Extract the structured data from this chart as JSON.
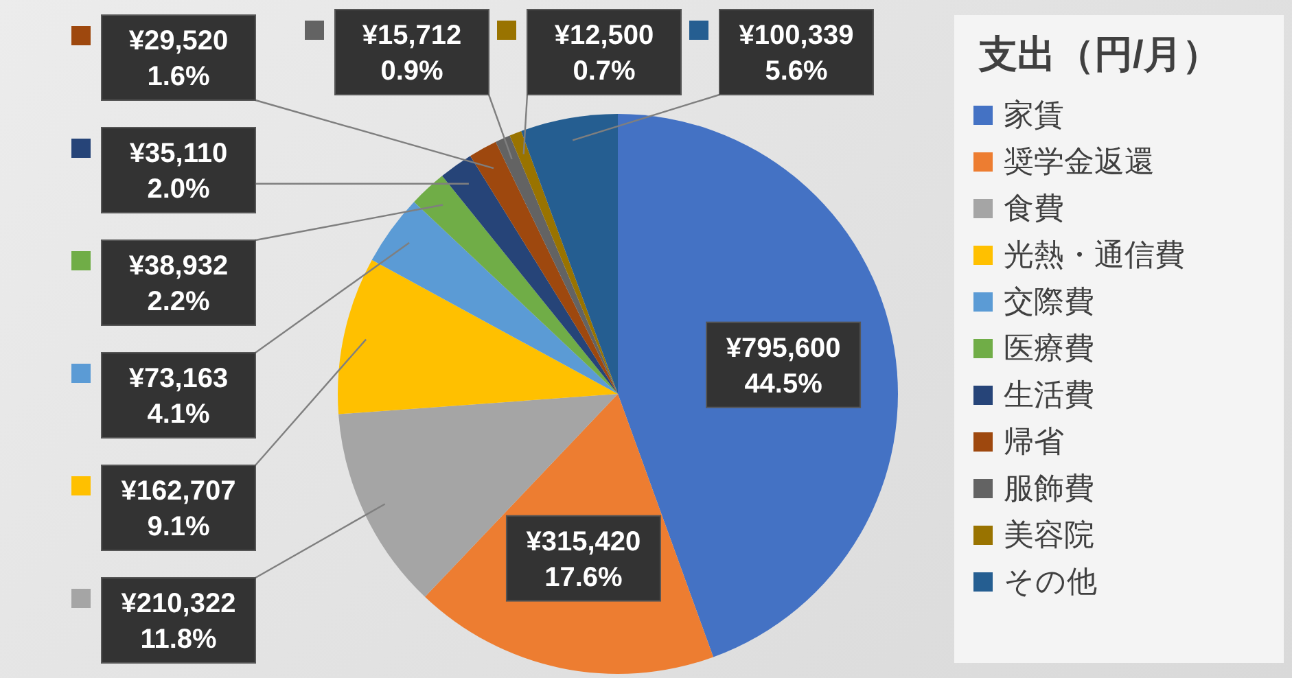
{
  "chart_data": {
    "type": "pie",
    "legend_title": "支出（円/月）",
    "categories": [
      "家賃",
      "奨学金返還",
      "食費",
      "光熱・通信費",
      "交際費",
      "医療費",
      "生活費",
      "帰省",
      "服飾費",
      "美容院",
      "その他"
    ],
    "values": [
      795600,
      315420,
      210322,
      162707,
      73163,
      38932,
      35110,
      29520,
      15712,
      12500,
      100339
    ],
    "colors": [
      "#4472c4",
      "#ed7d31",
      "#a5a5a5",
      "#ffc000",
      "#5b9bd5",
      "#70ad47",
      "#264478",
      "#9e480e",
      "#636363",
      "#997300",
      "#255e91"
    ],
    "value_labels": [
      "¥795,600\n44.5%",
      "¥315,420\n17.6%",
      "¥210,322\n11.8%",
      "¥162,707\n9.1%",
      "¥73,163\n4.1%",
      "¥38,932\n2.2%",
      "¥35,110\n2.0%",
      "¥29,520\n1.6%",
      "¥15,712\n0.9%",
      "¥12,500\n0.7%",
      "¥100,339\n5.6%"
    ],
    "legend": "right"
  }
}
